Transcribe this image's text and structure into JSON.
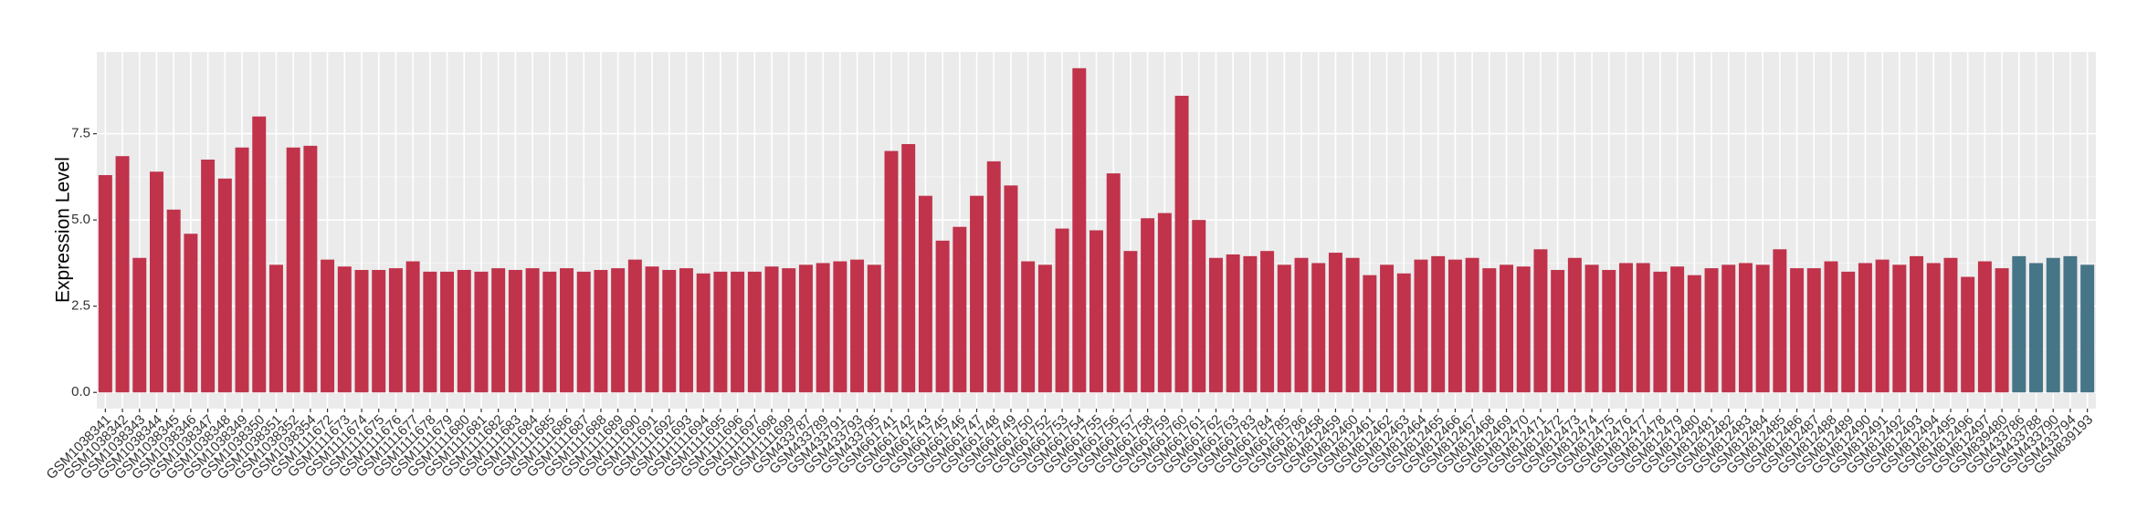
{
  "chart_data": {
    "type": "bar",
    "y_label": "Expression Level",
    "categories": [
      "GSM1038341",
      "GSM1038342",
      "GSM1038343",
      "GSM1038344",
      "GSM1038345",
      "GSM1038346",
      "GSM1038347",
      "GSM1038348",
      "GSM1038349",
      "GSM1038350",
      "GSM1038351",
      "GSM1038352",
      "GSM1038354",
      "GSM1111672",
      "GSM1111673",
      "GSM1111674",
      "GSM1111675",
      "GSM1111676",
      "GSM1111677",
      "GSM1111678",
      "GSM1111679",
      "GSM1111680",
      "GSM1111681",
      "GSM1111682",
      "GSM1111683",
      "GSM1111684",
      "GSM1111685",
      "GSM1111686",
      "GSM1111687",
      "GSM1111688",
      "GSM1111689",
      "GSM1111690",
      "GSM1111691",
      "GSM1111692",
      "GSM1111693",
      "GSM1111694",
      "GSM1111695",
      "GSM1111696",
      "GSM1111697",
      "GSM1111698",
      "GSM1111699",
      "GSM433787",
      "GSM433789",
      "GSM433791",
      "GSM433793",
      "GSM433795",
      "GSM661741",
      "GSM661742",
      "GSM661743",
      "GSM661745",
      "GSM661746",
      "GSM661747",
      "GSM661748",
      "GSM661749",
      "GSM661750",
      "GSM661752",
      "GSM661753",
      "GSM661754",
      "GSM661755",
      "GSM661756",
      "GSM661757",
      "GSM661758",
      "GSM661759",
      "GSM661760",
      "GSM661761",
      "GSM661762",
      "GSM661763",
      "GSM661783",
      "GSM661784",
      "GSM661785",
      "GSM661786",
      "GSM812458",
      "GSM812459",
      "GSM812460",
      "GSM812461",
      "GSM812462",
      "GSM812463",
      "GSM812464",
      "GSM812465",
      "GSM812466",
      "GSM812467",
      "GSM812468",
      "GSM812469",
      "GSM812470",
      "GSM812471",
      "GSM812472",
      "GSM812473",
      "GSM812474",
      "GSM812475",
      "GSM812476",
      "GSM812477",
      "GSM812478",
      "GSM812479",
      "GSM812480",
      "GSM812481",
      "GSM812482",
      "GSM812483",
      "GSM812484",
      "GSM812485",
      "GSM812486",
      "GSM812487",
      "GSM812488",
      "GSM812489",
      "GSM812490",
      "GSM812491",
      "GSM812492",
      "GSM812493",
      "GSM812494",
      "GSM812495",
      "GSM812496",
      "GSM812497",
      "GSM839480",
      "GSM433786",
      "GSM433788",
      "GSM433790",
      "GSM433794",
      "GSM839193"
    ],
    "values": [
      6.3,
      6.85,
      3.9,
      6.4,
      5.3,
      4.6,
      6.75,
      6.2,
      7.1,
      8.0,
      3.7,
      7.1,
      7.15,
      3.85,
      3.65,
      3.55,
      3.55,
      3.6,
      3.8,
      3.5,
      3.5,
      3.55,
      3.5,
      3.6,
      3.55,
      3.6,
      3.5,
      3.6,
      3.5,
      3.55,
      3.6,
      3.85,
      3.65,
      3.55,
      3.6,
      3.45,
      3.5,
      3.5,
      3.5,
      3.65,
      3.6,
      3.7,
      3.75,
      3.8,
      3.85,
      3.7,
      7.0,
      7.2,
      5.7,
      4.4,
      4.8,
      5.7,
      6.7,
      6.0,
      3.8,
      3.7,
      4.75,
      9.4,
      4.7,
      6.35,
      4.1,
      5.05,
      5.2,
      8.6,
      5.0,
      3.9,
      4.0,
      3.95,
      4.1,
      3.7,
      3.9,
      3.75,
      4.05,
      3.9,
      3.4,
      3.7,
      3.45,
      3.85,
      3.95,
      3.85,
      3.9,
      3.6,
      3.7,
      3.65,
      4.15,
      3.55,
      3.9,
      3.7,
      3.55,
      3.75,
      3.75,
      3.5,
      3.65,
      3.4,
      3.6,
      3.7,
      3.75,
      3.7,
      4.15,
      3.6,
      3.6,
      3.8,
      3.5,
      3.75,
      3.85,
      3.7,
      3.95,
      3.75,
      3.9,
      3.35,
      3.8,
      3.6,
      3.95,
      3.75,
      3.9,
      3.95,
      3.7
    ],
    "colors": [
      "#c0334b",
      "#c0334b",
      "#c0334b",
      "#c0334b",
      "#c0334b",
      "#c0334b",
      "#c0334b",
      "#c0334b",
      "#c0334b",
      "#c0334b",
      "#c0334b",
      "#c0334b",
      "#c0334b",
      "#c0334b",
      "#c0334b",
      "#c0334b",
      "#c0334b",
      "#c0334b",
      "#c0334b",
      "#c0334b",
      "#c0334b",
      "#c0334b",
      "#c0334b",
      "#c0334b",
      "#c0334b",
      "#c0334b",
      "#c0334b",
      "#c0334b",
      "#c0334b",
      "#c0334b",
      "#c0334b",
      "#c0334b",
      "#c0334b",
      "#c0334b",
      "#c0334b",
      "#c0334b",
      "#c0334b",
      "#c0334b",
      "#c0334b",
      "#c0334b",
      "#c0334b",
      "#c0334b",
      "#c0334b",
      "#c0334b",
      "#c0334b",
      "#c0334b",
      "#c0334b",
      "#c0334b",
      "#c0334b",
      "#c0334b",
      "#c0334b",
      "#c0334b",
      "#c0334b",
      "#c0334b",
      "#c0334b",
      "#c0334b",
      "#c0334b",
      "#c0334b",
      "#c0334b",
      "#c0334b",
      "#c0334b",
      "#c0334b",
      "#c0334b",
      "#c0334b",
      "#c0334b",
      "#c0334b",
      "#c0334b",
      "#c0334b",
      "#c0334b",
      "#c0334b",
      "#c0334b",
      "#c0334b",
      "#c0334b",
      "#c0334b",
      "#c0334b",
      "#c0334b",
      "#c0334b",
      "#c0334b",
      "#c0334b",
      "#c0334b",
      "#c0334b",
      "#c0334b",
      "#c0334b",
      "#c0334b",
      "#c0334b",
      "#c0334b",
      "#c0334b",
      "#c0334b",
      "#c0334b",
      "#c0334b",
      "#c0334b",
      "#c0334b",
      "#c0334b",
      "#c0334b",
      "#c0334b",
      "#c0334b",
      "#c0334b",
      "#c0334b",
      "#c0334b",
      "#c0334b",
      "#c0334b",
      "#c0334b",
      "#c0334b",
      "#c0334b",
      "#c0334b",
      "#c0334b",
      "#c0334b",
      "#c0334b",
      "#c0334b",
      "#c0334b",
      "#c0334b",
      "#c0334b",
      "#467587",
      "#467587",
      "#467587",
      "#467587",
      "#467587"
    ],
    "ylim": [
      -0.47,
      9.87
    ],
    "yticks": [
      {
        "value": 0,
        "label": "0.0"
      },
      {
        "value": 2.5,
        "label": "2.5"
      },
      {
        "value": 5,
        "label": "5.0"
      },
      {
        "value": 7.5,
        "label": "7.5"
      }
    ],
    "grid": true
  }
}
